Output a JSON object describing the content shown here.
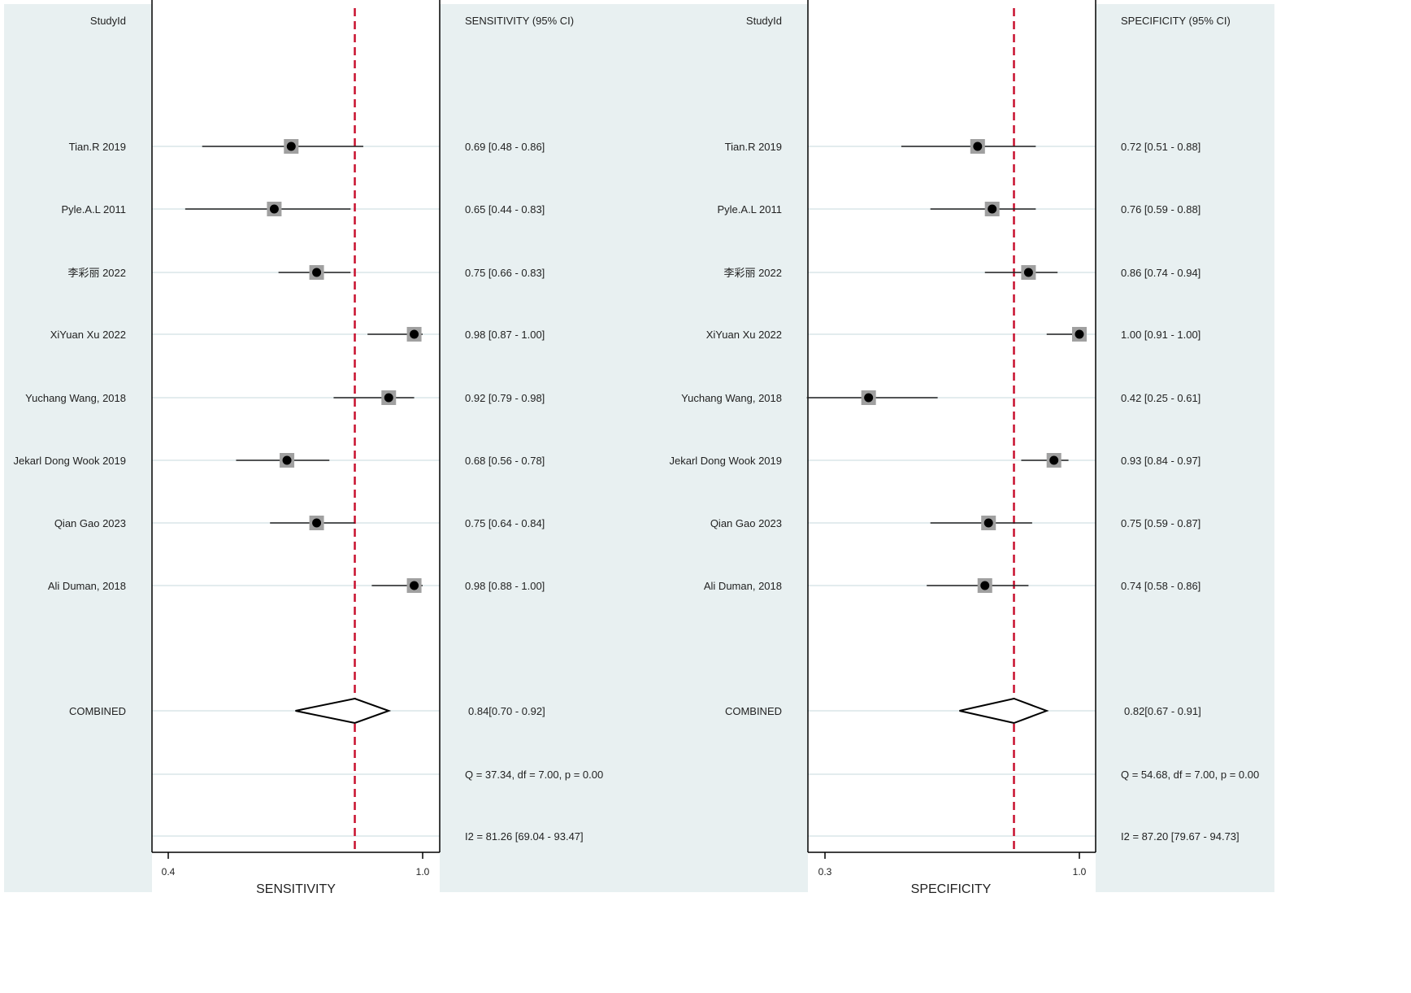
{
  "chart_data": [
    {
      "type": "forest",
      "panel": "sensitivity",
      "study_header": "StudyId",
      "stat_header": "SENSITIVITY (95% CI)",
      "xlabel": "SENSITIVITY",
      "xlim": [
        0.4,
        1.0
      ],
      "xticks": [
        "0.4",
        "1.0"
      ],
      "reference_line": 0.84,
      "studies": [
        {
          "name": "Tian.R 2019",
          "est": 0.69,
          "lo": 0.48,
          "hi": 0.86,
          "label": "0.69 [0.48 - 0.86]"
        },
        {
          "name": "Pyle.A.L 2011",
          "est": 0.65,
          "lo": 0.44,
          "hi": 0.83,
          "label": "0.65 [0.44 - 0.83]"
        },
        {
          "name": "李彩丽 2022",
          "est": 0.75,
          "lo": 0.66,
          "hi": 0.83,
          "label": "0.75 [0.66 - 0.83]"
        },
        {
          "name": "XiYuan Xu 2022",
          "est": 0.98,
          "lo": 0.87,
          "hi": 1.0,
          "label": "0.98 [0.87 - 1.00]"
        },
        {
          "name": "Yuchang Wang,  2018",
          "est": 0.92,
          "lo": 0.79,
          "hi": 0.98,
          "label": "0.92 [0.79 - 0.98]"
        },
        {
          "name": "Jekarl Dong Wook  2019",
          "est": 0.68,
          "lo": 0.56,
          "hi": 0.78,
          "label": "0.68 [0.56 - 0.78]"
        },
        {
          "name": "Qian Gao 2023",
          "est": 0.75,
          "lo": 0.64,
          "hi": 0.84,
          "label": "0.75 [0.64 - 0.84]"
        },
        {
          "name": "Ali Duman,  2018",
          "est": 0.98,
          "lo": 0.88,
          "hi": 1.0,
          "label": "0.98 [0.88 - 1.00]"
        }
      ],
      "combined": {
        "name": "COMBINED",
        "est": 0.84,
        "lo": 0.7,
        "hi": 0.92,
        "label": "0.84[0.70 - 0.92]"
      },
      "q_stat": "Q = 37.34, df = 7.00, p =  0.00",
      "i2_stat": "I2 = 81.26 [69.04 - 93.47]"
    },
    {
      "type": "forest",
      "panel": "specificity",
      "study_header": "StudyId",
      "stat_header": "SPECIFICITY (95% CI)",
      "xlabel": "SPECIFICITY",
      "xlim": [
        0.3,
        1.0
      ],
      "xticks": [
        "0.3",
        "1.0"
      ],
      "reference_line": 0.82,
      "studies": [
        {
          "name": "Tian.R 2019",
          "est": 0.72,
          "lo": 0.51,
          "hi": 0.88,
          "label": "0.72 [0.51 - 0.88]"
        },
        {
          "name": "Pyle.A.L 2011",
          "est": 0.76,
          "lo": 0.59,
          "hi": 0.88,
          "label": "0.76 [0.59 - 0.88]"
        },
        {
          "name": "李彩丽 2022",
          "est": 0.86,
          "lo": 0.74,
          "hi": 0.94,
          "label": "0.86 [0.74 - 0.94]"
        },
        {
          "name": "XiYuan Xu 2022",
          "est": 1.0,
          "lo": 0.91,
          "hi": 1.0,
          "label": "1.00 [0.91 - 1.00]"
        },
        {
          "name": "Yuchang Wang,  2018",
          "est": 0.42,
          "lo": 0.25,
          "hi": 0.61,
          "label": "0.42 [0.25 - 0.61]"
        },
        {
          "name": "Jekarl Dong Wook  2019",
          "est": 0.93,
          "lo": 0.84,
          "hi": 0.97,
          "label": "0.93 [0.84 - 0.97]"
        },
        {
          "name": "Qian Gao 2023",
          "est": 0.75,
          "lo": 0.59,
          "hi": 0.87,
          "label": "0.75 [0.59 - 0.87]"
        },
        {
          "name": "Ali Duman,  2018",
          "est": 0.74,
          "lo": 0.58,
          "hi": 0.86,
          "label": "0.74 [0.58 - 0.86]"
        }
      ],
      "combined": {
        "name": "COMBINED",
        "est": 0.82,
        "lo": 0.67,
        "hi": 0.91,
        "label": "0.82[0.67 - 0.91]"
      },
      "q_stat": "Q = 54.68, df = 7.00, p =  0.00",
      "i2_stat": "I2 = 87.20 [79.67 - 94.73]"
    }
  ],
  "colors": {
    "background": "#e8f0f1",
    "plot_area": "#ffffff",
    "reference_line": "#c8102e",
    "marker_box": "#a0a0a0",
    "marker_dot": "#000000",
    "row_line": "#e3ecee"
  }
}
